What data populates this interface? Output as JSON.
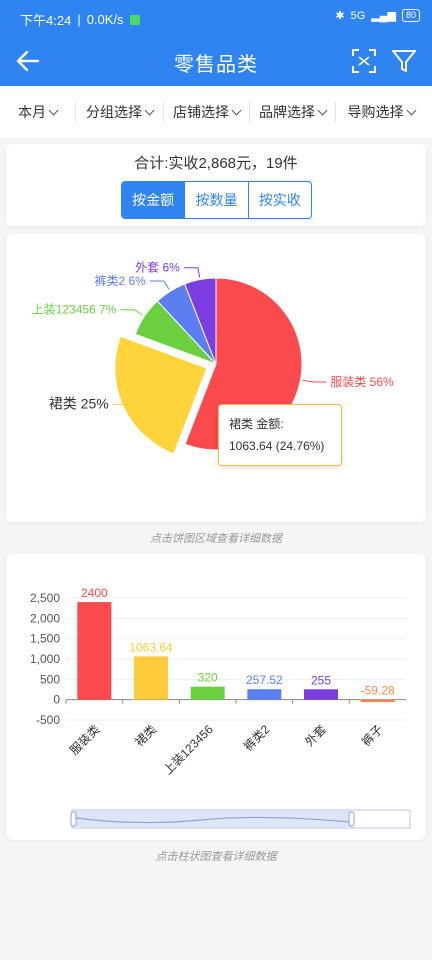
{
  "status": {
    "time": "下午4:24",
    "speed": "0.0K/s",
    "signal": "5G",
    "battery": "80"
  },
  "header": {
    "title": "零售品类"
  },
  "filters": [
    "本月",
    "分组选择",
    "店铺选择",
    "品牌选择",
    "导购选择"
  ],
  "summary": {
    "total_text": "合计:实收2,868元，19件",
    "toggles": [
      "按金额",
      "按数量",
      "按实收"
    ],
    "active_index": 0
  },
  "pie_tooltip": {
    "title": "裙类 金额:",
    "value": "1063.64 (24.76%)"
  },
  "pie_hint": "点击饼图区域查看详细数据",
  "bar_hint": "点击柱状图查看详细数据",
  "colors": {
    "primary": "#2f84f0",
    "red": "#fa4a4d",
    "yellow": "#ffd43b",
    "green": "#6ad040",
    "blue": "#5b7ff0",
    "purple": "#7b3ce0",
    "orange": "#f5874a"
  },
  "chart_data": [
    {
      "type": "pie",
      "slices": [
        {
          "label": "服装类",
          "percent": "56%",
          "value": 2400,
          "color": "#fa4a4d"
        },
        {
          "label": "裙类",
          "percent": "25%",
          "value": 1063.64,
          "color": "#ffd43b"
        },
        {
          "label": "上装123456",
          "percent": "7%",
          "value": 320,
          "color": "#6ad040"
        },
        {
          "label": "裤类2",
          "percent": "6%",
          "value": 257.52,
          "color": "#5b7ff0"
        },
        {
          "label": "外套",
          "percent": "6%",
          "value": 255,
          "color": "#7b3ce0"
        }
      ]
    },
    {
      "type": "bar",
      "categories": [
        "服装类",
        "裙类",
        "上装123456",
        "裤类2",
        "外套",
        "裤子"
      ],
      "values": [
        2400,
        1063.64,
        320,
        257.52,
        255,
        -59.28
      ],
      "value_labels": [
        "2400",
        "1063.64",
        "320",
        "257.52",
        "255",
        "-59.28"
      ],
      "colors": [
        "#fa4a4d",
        "#ffcb3d",
        "#6ad040",
        "#5b7ff0",
        "#7b3ce0",
        "#f5874a"
      ],
      "yticks": [
        "2,500",
        "2,000",
        "1,500",
        "1,000",
        "500",
        "0",
        "-500"
      ],
      "ylim": [
        -500,
        2500
      ]
    }
  ]
}
